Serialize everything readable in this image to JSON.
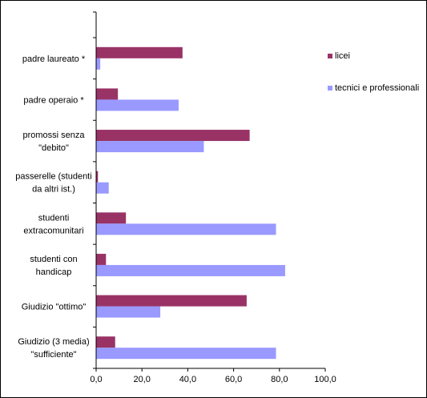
{
  "chart_data": {
    "type": "bar",
    "orientation": "horizontal",
    "categories": [
      [
        "padre laureato *"
      ],
      [
        "padre operaio *"
      ],
      [
        "promossi senza",
        "\"debito\""
      ],
      [
        "passerelle (studenti",
        "da altri ist.)"
      ],
      [
        "studenti",
        "extracomunitari"
      ],
      [
        "studenti con",
        "handicap"
      ],
      [
        "Giudizio \"ottimo\""
      ],
      [
        "Giudizio (3 media)",
        "\"sufficiente\""
      ]
    ],
    "series": [
      {
        "name": "licei",
        "color": "#993366",
        "values": [
          37.7,
          9.5,
          67.0,
          0.8,
          13.0,
          4.3,
          65.7,
          8.3
        ]
      },
      {
        "name": "tecnici e professionali",
        "color": "#9999FF",
        "values": [
          1.8,
          36.0,
          47.0,
          5.5,
          78.5,
          82.5,
          28.0,
          78.5
        ]
      }
    ],
    "xlim": [
      0,
      100
    ],
    "xticks": [
      "0,0",
      "20,0",
      "40,0",
      "60,0",
      "80,0",
      "100,0"
    ],
    "grid": false,
    "legend_position": "right"
  }
}
